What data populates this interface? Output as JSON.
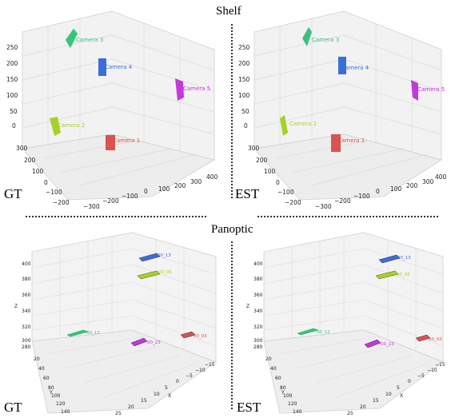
{
  "titles": {
    "shelf": "Shelf",
    "panoptic": "Panoptic"
  },
  "corner_labels": {
    "gt": "GT",
    "est": "EST"
  },
  "shelf": {
    "z_ticks": [
      "250",
      "200",
      "150",
      "100",
      "50",
      "0"
    ],
    "y_ticks": [
      "300",
      "200",
      "100",
      "0",
      "−100",
      "−200"
    ],
    "x_ticks": [
      "−300",
      "−200",
      "−100",
      "0",
      "100",
      "200",
      "300",
      "400"
    ],
    "cameras": [
      {
        "label": "Camera 1",
        "color": "#d9534f"
      },
      {
        "label": "Camera 2",
        "color": "#a7d129"
      },
      {
        "label": "Camera 3",
        "color": "#3fbf7f"
      },
      {
        "label": "Camera 4",
        "color": "#3a6fd8"
      },
      {
        "label": "Camera 5",
        "color": "#c23ad8"
      }
    ]
  },
  "panoptic": {
    "z_label": "Z",
    "y_label": "Y",
    "x_label": "X",
    "z_ticks": [
      "400",
      "380",
      "360",
      "340",
      "320",
      "300",
      "280"
    ],
    "y_ticks": [
      "20",
      "40",
      "60",
      "80",
      "100",
      "120",
      "140"
    ],
    "x_ticks": [
      "25",
      "20",
      "15",
      "10",
      "5",
      "0",
      "−5",
      "−10",
      "−15"
    ],
    "cameras": [
      {
        "label": "00_13",
        "color": "#3a6fd8"
      },
      {
        "label": "00_06",
        "color": "#a7d129"
      },
      {
        "label": "00_12",
        "color": "#3fbf7f"
      },
      {
        "label": "00_23",
        "color": "#c23ad8"
      },
      {
        "label": "00_03",
        "color": "#d9534f"
      }
    ]
  }
}
